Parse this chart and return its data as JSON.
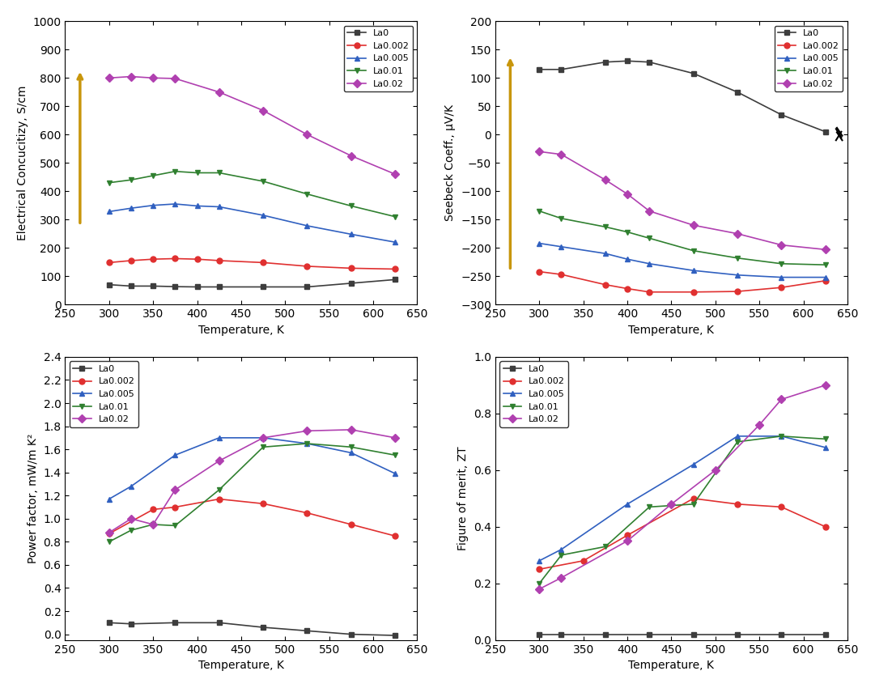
{
  "ec": {
    "La0": {
      "t": [
        300,
        325,
        350,
        375,
        400,
        425,
        475,
        525,
        575,
        625
      ],
      "v": [
        70,
        65,
        65,
        63,
        62,
        62,
        62,
        62,
        75,
        88
      ]
    },
    "La0002": {
      "t": [
        300,
        325,
        350,
        375,
        400,
        425,
        475,
        525,
        575,
        625
      ],
      "v": [
        148,
        155,
        160,
        162,
        160,
        155,
        148,
        135,
        128,
        125
      ]
    },
    "La0005": {
      "t": [
        300,
        325,
        350,
        375,
        400,
        425,
        475,
        525,
        575,
        625
      ],
      "v": [
        328,
        340,
        350,
        355,
        348,
        345,
        315,
        278,
        248,
        220
      ]
    },
    "La001": {
      "t": [
        300,
        325,
        350,
        375,
        400,
        425,
        475,
        525,
        575,
        625
      ],
      "v": [
        430,
        440,
        455,
        470,
        465,
        465,
        435,
        390,
        348,
        310
      ]
    },
    "La002": {
      "t": [
        300,
        325,
        350,
        375,
        425,
        475,
        525,
        575,
        625
      ],
      "v": [
        800,
        805,
        800,
        798,
        750,
        685,
        600,
        525,
        460
      ]
    }
  },
  "seebeck": {
    "La0": {
      "t": [
        300,
        325,
        375,
        400,
        425,
        475,
        525,
        575,
        625
      ],
      "v": [
        115,
        115,
        128,
        130,
        128,
        108,
        75,
        35,
        5
      ]
    },
    "La0002": {
      "t": [
        300,
        325,
        375,
        400,
        425,
        475,
        525,
        575,
        625
      ],
      "v": [
        -242,
        -247,
        -265,
        -272,
        -278,
        -278,
        -277,
        -270,
        -258
      ]
    },
    "La0005": {
      "t": [
        300,
        325,
        375,
        400,
        425,
        475,
        525,
        575,
        625
      ],
      "v": [
        -192,
        -198,
        -210,
        -220,
        -228,
        -240,
        -248,
        -252,
        -252
      ]
    },
    "La001": {
      "t": [
        300,
        325,
        375,
        400,
        425,
        475,
        525,
        575,
        625
      ],
      "v": [
        -135,
        -148,
        -163,
        -172,
        -183,
        -205,
        -218,
        -228,
        -230
      ]
    },
    "La002": {
      "t": [
        300,
        325,
        375,
        400,
        425,
        475,
        525,
        575,
        625
      ],
      "v": [
        -30,
        -35,
        -80,
        -105,
        -135,
        -160,
        -175,
        -195,
        -203
      ]
    }
  },
  "pf": {
    "La0": {
      "t": [
        300,
        325,
        375,
        425,
        475,
        525,
        575,
        625
      ],
      "v": [
        0.1,
        0.09,
        0.1,
        0.1,
        0.06,
        0.03,
        0.0,
        -0.01
      ]
    },
    "La0002": {
      "t": [
        300,
        350,
        375,
        425,
        475,
        525,
        575,
        625
      ],
      "v": [
        0.87,
        1.08,
        1.1,
        1.17,
        1.13,
        1.05,
        0.95,
        0.85
      ]
    },
    "La0005": {
      "t": [
        300,
        325,
        375,
        425,
        475,
        525,
        575,
        625
      ],
      "v": [
        1.17,
        1.28,
        1.55,
        1.7,
        1.7,
        1.65,
        1.57,
        1.39
      ]
    },
    "La001": {
      "t": [
        300,
        325,
        350,
        375,
        425,
        475,
        525,
        575,
        625
      ],
      "v": [
        0.8,
        0.9,
        0.95,
        0.94,
        1.25,
        1.62,
        1.65,
        1.62,
        1.55
      ]
    },
    "La002": {
      "t": [
        300,
        325,
        350,
        375,
        425,
        475,
        525,
        575,
        625
      ],
      "v": [
        0.88,
        1.0,
        0.95,
        1.25,
        1.5,
        1.7,
        1.76,
        1.77,
        1.7
      ]
    }
  },
  "zt": {
    "La0": {
      "t": [
        300,
        325,
        375,
        425,
        475,
        525,
        575,
        625
      ],
      "v": [
        0.02,
        0.02,
        0.02,
        0.02,
        0.02,
        0.02,
        0.02,
        0.02
      ]
    },
    "La0002": {
      "t": [
        300,
        350,
        400,
        475,
        525,
        575,
        625
      ],
      "v": [
        0.25,
        0.28,
        0.37,
        0.5,
        0.48,
        0.47,
        0.4
      ]
    },
    "La0005": {
      "t": [
        300,
        325,
        400,
        475,
        525,
        575,
        625
      ],
      "v": [
        0.28,
        0.32,
        0.48,
        0.62,
        0.72,
        0.72,
        0.68
      ]
    },
    "La001": {
      "t": [
        300,
        325,
        375,
        425,
        475,
        525,
        575,
        625
      ],
      "v": [
        0.2,
        0.3,
        0.33,
        0.47,
        0.48,
        0.7,
        0.72,
        0.71
      ]
    },
    "La002": {
      "t": [
        300,
        325,
        400,
        450,
        500,
        550,
        575,
        625
      ],
      "v": [
        0.18,
        0.22,
        0.35,
        0.48,
        0.6,
        0.76,
        0.85,
        0.9
      ]
    }
  },
  "colors": {
    "La0": "#3d3d3d",
    "La0002": "#e03030",
    "La0005": "#3060c0",
    "La001": "#308030",
    "La002": "#b040b0"
  },
  "markers": {
    "La0": "s",
    "La0002": "o",
    "La0005": "^",
    "La001": "v",
    "La002": "D"
  },
  "labels": {
    "La0": "La0",
    "La0002": "La0.002",
    "La0005": "La0.005",
    "La001": "La0.01",
    "La002": "La0.02"
  },
  "arrow_color": "#c8960c",
  "bg_color": "#ffffff"
}
